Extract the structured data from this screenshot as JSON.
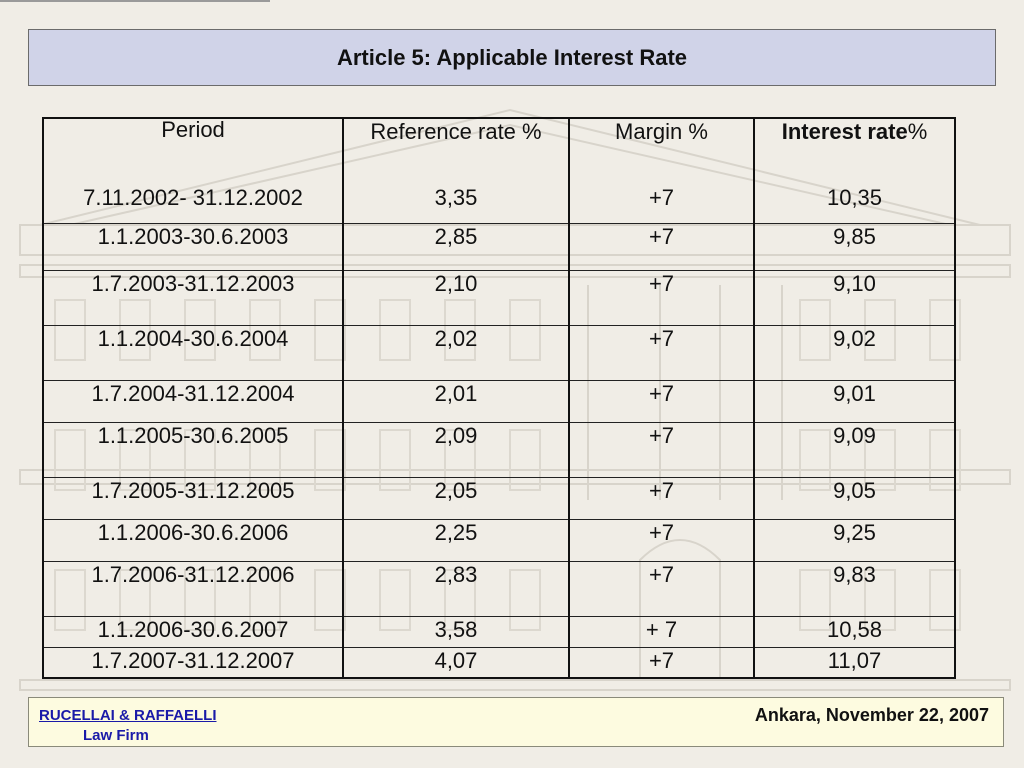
{
  "title": "Article 5: Applicable Interest Rate",
  "table": {
    "headers": {
      "period": "Period",
      "reference": "Reference rate %",
      "margin": "Margin %",
      "interest_bold": "Interest rate",
      "interest_rest": " %"
    },
    "rows": [
      {
        "period": "7.11.2002- 31.12.2002",
        "reference": "3,35",
        "margin": "+7",
        "interest": "10,35"
      },
      {
        "period": "1.1.2003-30.6.2003",
        "reference": "2,85",
        "margin": "+7",
        "interest": "9,85"
      },
      {
        "period": "1.7.2003-31.12.2003",
        "reference": "2,10",
        "margin": "+7",
        "interest": "9,10"
      },
      {
        "period": "1.1.2004-30.6.2004",
        "reference": "2,02",
        "margin": "+7",
        "interest": "9,02"
      },
      {
        "period": "1.7.2004-31.12.2004",
        "reference": "2,01",
        "margin": "+7",
        "interest": "9,01"
      },
      {
        "period": "1.1.2005-30.6.2005",
        "reference": "2,09",
        "margin": "+7",
        "interest": "9,09"
      },
      {
        "period": "1.7.2005-31.12.2005",
        "reference": "2,05",
        "margin": "+7",
        "interest": "9,05"
      },
      {
        "period": "1.1.2006-30.6.2006",
        "reference": "2,25",
        "margin": "+7",
        "interest": "9,25"
      },
      {
        "period": "1.7.2006-31.12.2006",
        "reference": "2,83",
        "margin": "+7",
        "interest": "9,83"
      },
      {
        "period": "1.1.2006-30.6.2007",
        "reference": "3,58",
        "margin": "+ 7",
        "interest": "10,58"
      },
      {
        "period": "1.7.2007-31.12.2007",
        "reference": "4,07",
        "margin": "+7",
        "interest": "11,07"
      }
    ]
  },
  "footer": {
    "firm_name": "RUCELLAI & RAFFAELLI",
    "firm_type": "Law Firm",
    "place_date": "Ankara, November 22, 2007"
  }
}
